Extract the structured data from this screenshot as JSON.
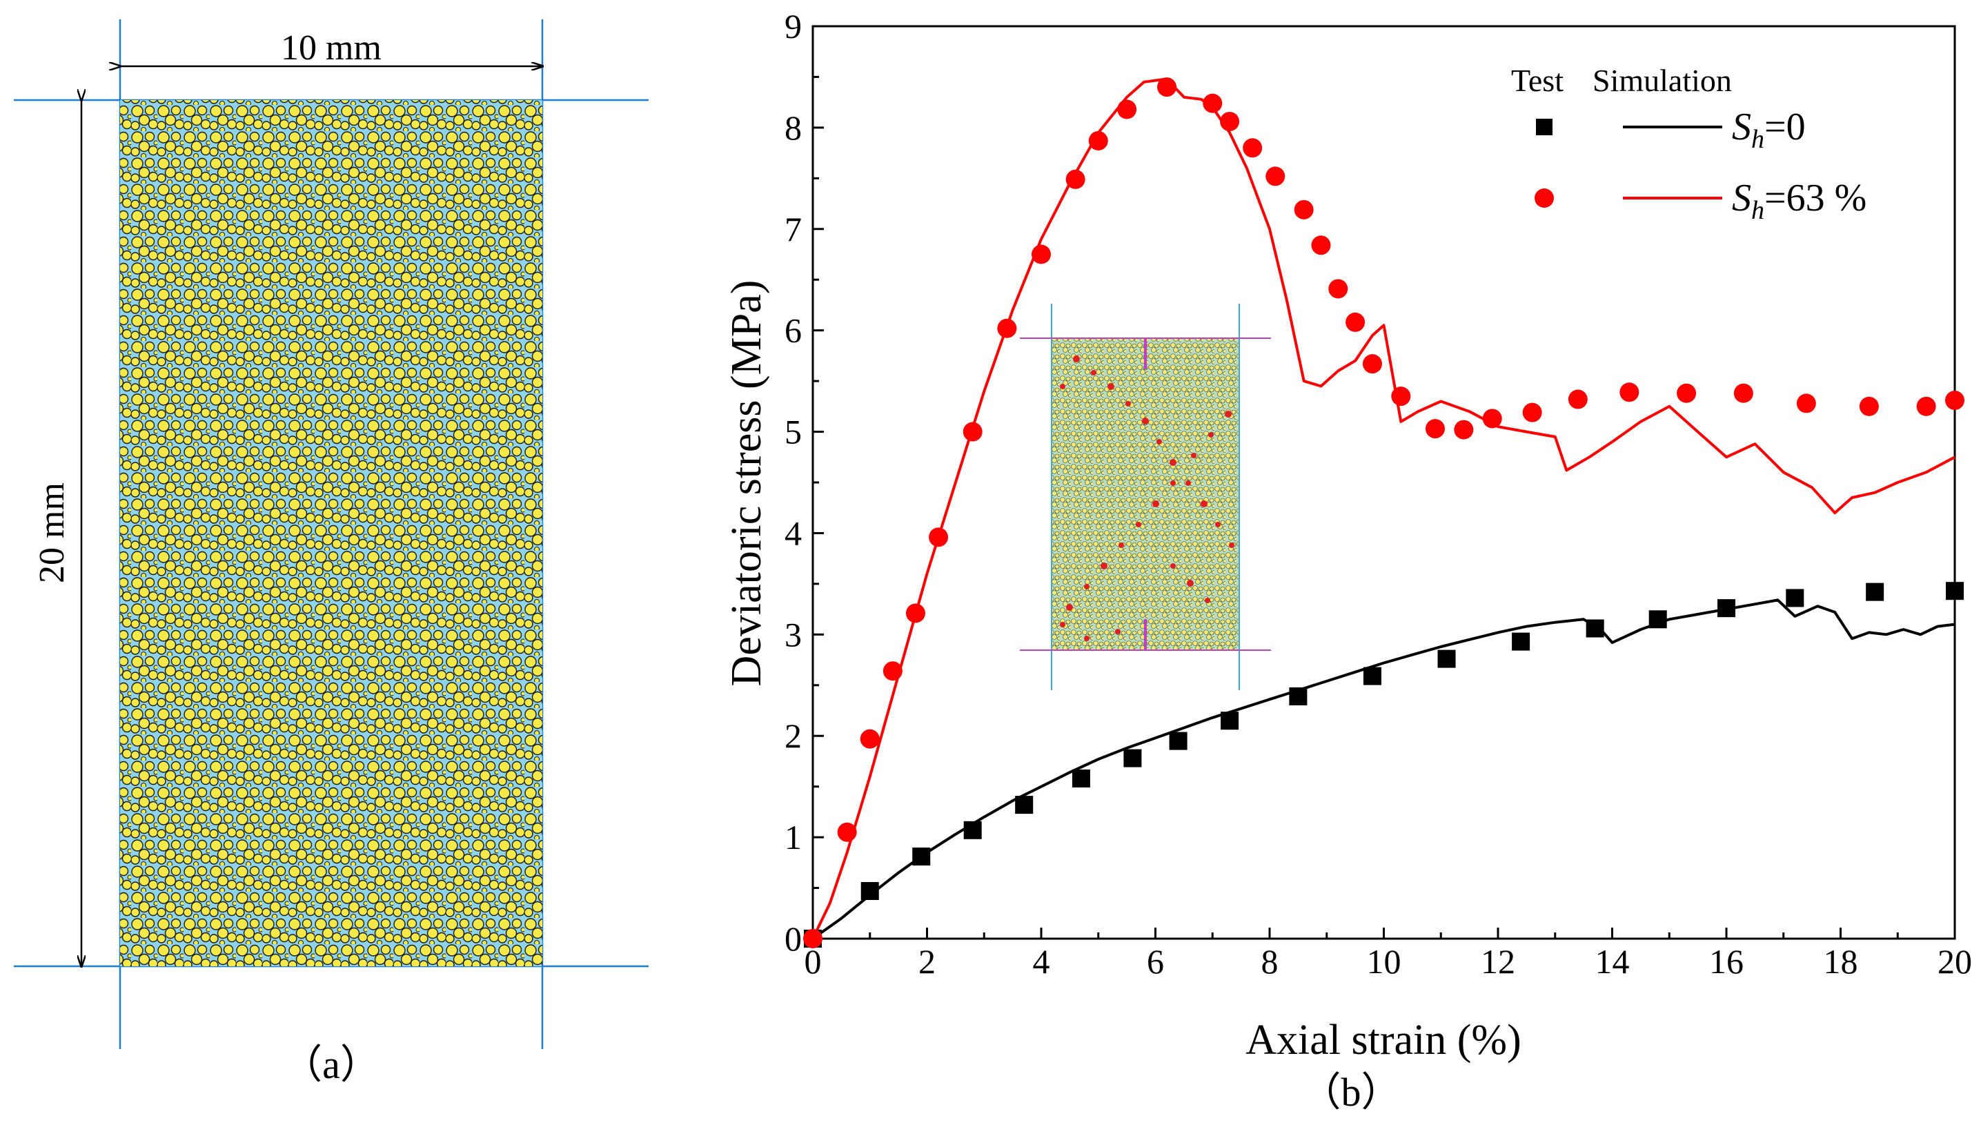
{
  "panel_a": {
    "width_label": "10 mm",
    "height_label": "20 mm",
    "caption": "（a）",
    "particle_color": "#f5e94a",
    "pore_color": "#8fd3e8"
  },
  "panel_b": {
    "caption": "（b）"
  },
  "legend": {
    "header_test": "Test",
    "header_sim": "Simulation",
    "entries": [
      {
        "label_main": "S",
        "label_sub": "h",
        "label_rest": "=0"
      },
      {
        "label_main": "S",
        "label_sub": "h",
        "label_rest": "=63 %"
      }
    ]
  },
  "colors": {
    "black": "#000000",
    "red": "#ff0000",
    "guide": "#1a7fd4",
    "inset_guide": "#c040c0",
    "inset_frame": "#3aa8d8"
  },
  "chart_data": {
    "type": "scatter",
    "xlabel": "Axial strain (%)",
    "ylabel": "Deviatoric stress (MPa)",
    "xlim": [
      0,
      20
    ],
    "ylim": [
      0,
      9
    ],
    "xticks": [
      0,
      2,
      4,
      6,
      8,
      10,
      12,
      14,
      16,
      18,
      20
    ],
    "yticks": [
      0,
      1,
      2,
      3,
      4,
      5,
      6,
      7,
      8,
      9
    ],
    "legend_position": "top-right",
    "series": [
      {
        "name": "Sh=0",
        "kind": "test",
        "marker": "square",
        "color": "#000000",
        "x": [
          0,
          1.0,
          1.9,
          2.8,
          3.7,
          4.7,
          5.6,
          6.4,
          7.3,
          8.5,
          9.8,
          11.1,
          12.4,
          13.7,
          14.8,
          16.0,
          17.2,
          18.6,
          20.0
        ],
        "y": [
          0,
          0.47,
          0.81,
          1.07,
          1.32,
          1.58,
          1.78,
          1.95,
          2.15,
          2.39,
          2.59,
          2.76,
          2.93,
          3.06,
          3.15,
          3.26,
          3.36,
          3.42,
          3.43
        ]
      },
      {
        "name": "Sh=0",
        "kind": "simulation",
        "marker": "line",
        "color": "#000000",
        "x": [
          0,
          0.5,
          1.0,
          1.5,
          2.0,
          2.5,
          3.0,
          3.5,
          4.0,
          4.5,
          5.0,
          5.5,
          6.0,
          6.5,
          7.0,
          7.5,
          8.0,
          8.5,
          9.0,
          9.5,
          10.0,
          10.5,
          11.0,
          11.5,
          12.0,
          12.5,
          13.0,
          13.5,
          13.8,
          14.0,
          14.5,
          15.0,
          15.5,
          16.0,
          16.5,
          16.9,
          17.2,
          17.6,
          17.9,
          18.2,
          18.5,
          18.8,
          19.1,
          19.4,
          19.7,
          20.0
        ],
        "y": [
          0,
          0.2,
          0.43,
          0.65,
          0.85,
          1.03,
          1.2,
          1.36,
          1.5,
          1.64,
          1.77,
          1.88,
          1.98,
          2.08,
          2.18,
          2.27,
          2.36,
          2.45,
          2.54,
          2.63,
          2.72,
          2.8,
          2.88,
          2.95,
          3.02,
          3.08,
          3.12,
          3.15,
          3.05,
          2.92,
          3.05,
          3.15,
          3.2,
          3.25,
          3.3,
          3.34,
          3.18,
          3.28,
          3.22,
          2.96,
          3.02,
          3.0,
          3.05,
          3.0,
          3.08,
          3.1
        ]
      },
      {
        "name": "Sh=63 %",
        "kind": "test",
        "marker": "circle",
        "color": "#ff0000",
        "x": [
          0,
          0.6,
          1.0,
          1.4,
          1.8,
          2.2,
          2.8,
          3.4,
          4.0,
          4.6,
          5.0,
          5.5,
          6.2,
          7.0,
          7.3,
          7.7,
          8.1,
          8.6,
          8.9,
          9.2,
          9.5,
          9.8,
          10.3,
          10.9,
          11.4,
          11.9,
          12.6,
          13.4,
          14.3,
          15.3,
          16.3,
          17.4,
          18.5,
          19.5,
          20.0
        ],
        "y": [
          0,
          1.05,
          1.97,
          2.64,
          3.21,
          3.96,
          5.0,
          6.02,
          6.75,
          7.49,
          7.87,
          8.18,
          8.4,
          8.24,
          8.06,
          7.8,
          7.52,
          7.19,
          6.84,
          6.41,
          6.08,
          5.67,
          5.35,
          5.03,
          5.02,
          5.13,
          5.19,
          5.32,
          5.39,
          5.38,
          5.38,
          5.28,
          5.25,
          5.25,
          5.31
        ]
      },
      {
        "name": "Sh=63 %",
        "kind": "simulation",
        "marker": "line",
        "color": "#ff0000",
        "x": [
          0,
          0.3,
          0.6,
          1.0,
          1.5,
          2.0,
          2.5,
          3.0,
          3.5,
          4.0,
          4.5,
          5.0,
          5.5,
          5.8,
          6.2,
          6.5,
          6.8,
          7.0,
          7.3,
          7.6,
          8.0,
          8.3,
          8.6,
          8.9,
          9.2,
          9.5,
          9.8,
          10.0,
          10.3,
          10.6,
          11.0,
          11.5,
          12.0,
          12.5,
          13.0,
          13.2,
          13.6,
          14.0,
          14.5,
          15.0,
          15.5,
          16.0,
          16.5,
          17.0,
          17.5,
          17.9,
          18.2,
          18.6,
          19.0,
          19.5,
          20.0
        ],
        "y": [
          0,
          0.35,
          0.85,
          1.6,
          2.6,
          3.6,
          4.5,
          5.4,
          6.2,
          6.9,
          7.45,
          7.95,
          8.3,
          8.45,
          8.48,
          8.3,
          8.28,
          8.2,
          7.95,
          7.6,
          7.0,
          6.3,
          5.5,
          5.45,
          5.6,
          5.7,
          5.95,
          6.05,
          5.1,
          5.2,
          5.3,
          5.2,
          5.05,
          5.0,
          4.95,
          4.62,
          4.75,
          4.9,
          5.1,
          5.25,
          5.0,
          4.75,
          4.88,
          4.6,
          4.45,
          4.2,
          4.35,
          4.4,
          4.5,
          4.6,
          4.75
        ]
      }
    ]
  }
}
